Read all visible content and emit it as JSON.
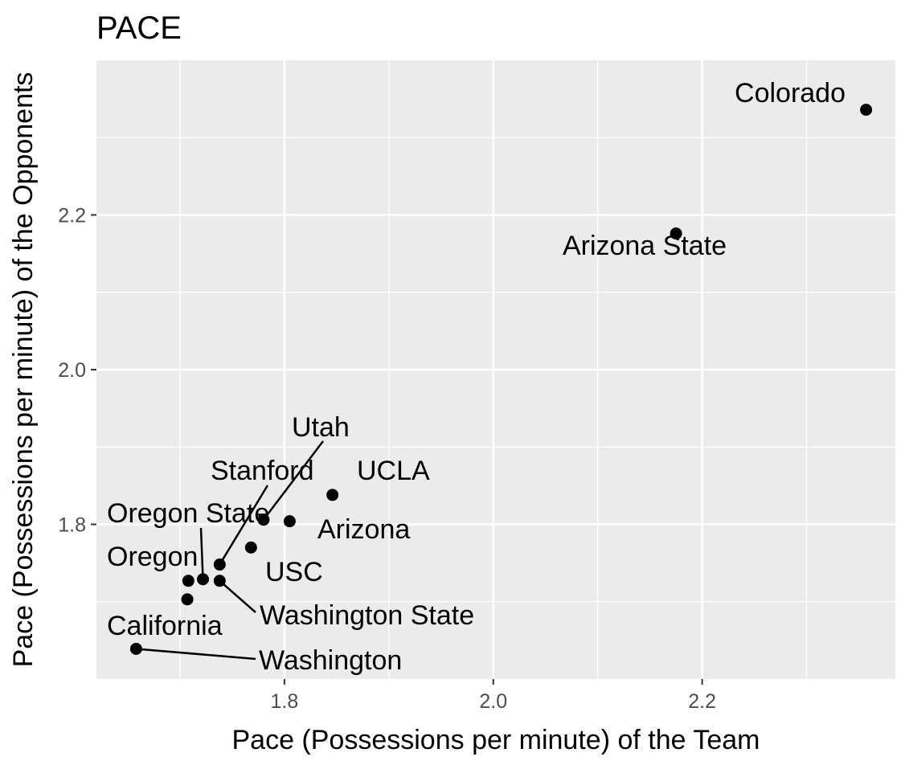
{
  "chart_data": {
    "type": "scatter",
    "title": "PACE",
    "xlabel": "Pace (Possessions per minute) of the Team",
    "ylabel": "Pace (Possessions per minute) of the Opponents",
    "xlim": [
      1.62,
      2.385
    ],
    "ylim": [
      1.6,
      2.4
    ],
    "xticks": [
      1.8,
      2.0,
      2.2
    ],
    "xtick_labels": [
      "1.8",
      "2.0",
      "2.2"
    ],
    "yticks": [
      1.8,
      2.0,
      2.2
    ],
    "ytick_labels": [
      "1.8",
      "2.0",
      "2.2"
    ],
    "grid": true,
    "point_color": "#000000",
    "panel_color": "#ebebeb",
    "grid_color": "#ffffff",
    "points": [
      {
        "label": "Colorado",
        "x": 2.357,
        "y": 2.336
      },
      {
        "label": "Arizona State",
        "x": 2.175,
        "y": 2.176
      },
      {
        "label": "UCLA",
        "x": 1.846,
        "y": 1.838
      },
      {
        "label": "Arizona",
        "x": 1.805,
        "y": 1.804
      },
      {
        "label": "Utah",
        "x": 1.78,
        "y": 1.806
      },
      {
        "label": "USC",
        "x": 1.768,
        "y": 1.77
      },
      {
        "label": "Stanford",
        "x": 1.738,
        "y": 1.748
      },
      {
        "label": "Oregon State",
        "x": 1.722,
        "y": 1.729
      },
      {
        "label": "Washington State",
        "x": 1.738,
        "y": 1.727
      },
      {
        "label": "Oregon",
        "x": 1.708,
        "y": 1.727
      },
      {
        "label": "California",
        "x": 1.707,
        "y": 1.703
      },
      {
        "label": "Washington",
        "x": 1.658,
        "y": 1.639
      }
    ]
  }
}
